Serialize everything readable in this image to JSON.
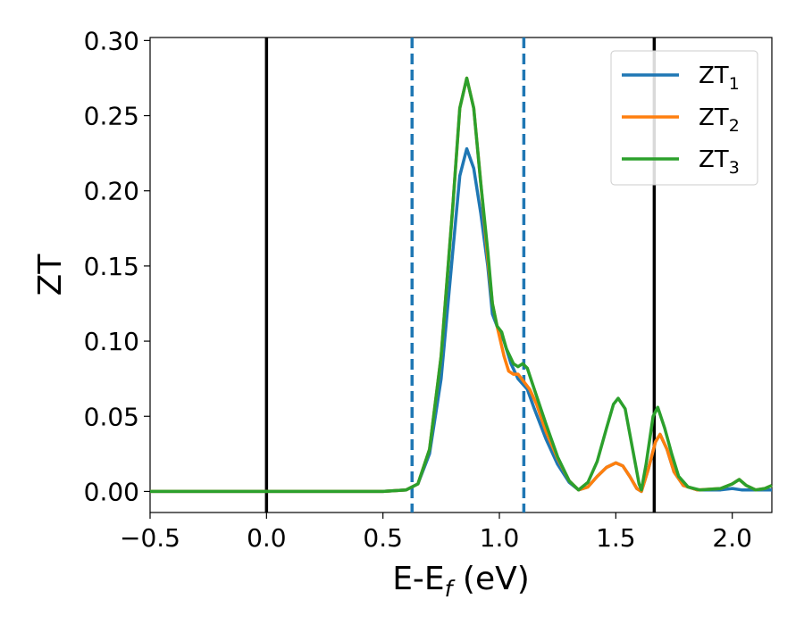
{
  "chart_data": {
    "type": "line",
    "title": "",
    "xlabel": "E-E",
    "xlabel_sub": "f",
    "xlabel_unit": " (eV)",
    "ylabel": "ZT",
    "xlim": [
      -0.5,
      2.17
    ],
    "ylim": [
      -0.014,
      0.302
    ],
    "xticks": [
      -0.5,
      0.0,
      0.5,
      1.0,
      1.5,
      2.0
    ],
    "xtick_labels": [
      "−0.5",
      "0.0",
      "0.5",
      "1.0",
      "1.5",
      "2.0"
    ],
    "yticks": [
      0.0,
      0.05,
      0.1,
      0.15,
      0.2,
      0.25,
      0.3
    ],
    "ytick_labels": [
      "0.00",
      "0.05",
      "0.10",
      "0.15",
      "0.20",
      "0.25",
      "0.30"
    ],
    "grid": false,
    "legend_position": "top-right",
    "vlines": [
      {
        "x": 0.0,
        "style": "solid",
        "color": "#000000"
      },
      {
        "x": 1.665,
        "style": "solid",
        "color": "#000000"
      },
      {
        "x": 0.625,
        "style": "dashed",
        "color": "#1f77b4"
      },
      {
        "x": 1.105,
        "style": "dashed",
        "color": "#1f77b4"
      }
    ],
    "series": [
      {
        "name": "ZT",
        "name_sub": "1",
        "color": "#1f77b4",
        "points": [
          [
            -0.5,
            0
          ],
          [
            0.5,
            0
          ],
          [
            0.6,
            0.001
          ],
          [
            0.65,
            0.005
          ],
          [
            0.7,
            0.025
          ],
          [
            0.75,
            0.075
          ],
          [
            0.8,
            0.16
          ],
          [
            0.83,
            0.21
          ],
          [
            0.86,
            0.228
          ],
          [
            0.89,
            0.215
          ],
          [
            0.92,
            0.185
          ],
          [
            0.95,
            0.15
          ],
          [
            0.97,
            0.118
          ],
          [
            0.99,
            0.11
          ],
          [
            1.02,
            0.1
          ],
          [
            1.05,
            0.085
          ],
          [
            1.08,
            0.075
          ],
          [
            1.12,
            0.068
          ],
          [
            1.15,
            0.055
          ],
          [
            1.2,
            0.035
          ],
          [
            1.25,
            0.018
          ],
          [
            1.3,
            0.006
          ],
          [
            1.34,
            0.001
          ],
          [
            1.38,
            0.003
          ],
          [
            1.42,
            0.01
          ],
          [
            1.46,
            0.016
          ],
          [
            1.5,
            0.019
          ],
          [
            1.53,
            0.017
          ],
          [
            1.56,
            0.01
          ],
          [
            1.59,
            0.002
          ],
          [
            1.61,
            0
          ],
          [
            1.64,
            0.015
          ],
          [
            1.67,
            0.033
          ],
          [
            1.69,
            0.038
          ],
          [
            1.72,
            0.028
          ],
          [
            1.75,
            0.013
          ],
          [
            1.79,
            0.004
          ],
          [
            1.85,
            0.001
          ],
          [
            1.95,
            0.001
          ],
          [
            2.0,
            0.002
          ],
          [
            2.04,
            0.001
          ],
          [
            2.1,
            0.001
          ],
          [
            2.17,
            0.001
          ]
        ]
      },
      {
        "name": "ZT",
        "name_sub": "2",
        "color": "#ff7f0e",
        "points": [
          [
            -0.5,
            0
          ],
          [
            0.5,
            0
          ],
          [
            0.6,
            0.001
          ],
          [
            0.65,
            0.005
          ],
          [
            0.7,
            0.028
          ],
          [
            0.75,
            0.09
          ],
          [
            0.8,
            0.19
          ],
          [
            0.83,
            0.255
          ],
          [
            0.86,
            0.275
          ],
          [
            0.89,
            0.255
          ],
          [
            0.92,
            0.205
          ],
          [
            0.95,
            0.155
          ],
          [
            0.97,
            0.125
          ],
          [
            0.99,
            0.11
          ],
          [
            1.02,
            0.09
          ],
          [
            1.04,
            0.08
          ],
          [
            1.06,
            0.078
          ],
          [
            1.08,
            0.078
          ],
          [
            1.1,
            0.074
          ],
          [
            1.13,
            0.068
          ],
          [
            1.16,
            0.058
          ],
          [
            1.2,
            0.04
          ],
          [
            1.25,
            0.022
          ],
          [
            1.3,
            0.007
          ],
          [
            1.34,
            0.001
          ],
          [
            1.38,
            0.003
          ],
          [
            1.42,
            0.01
          ],
          [
            1.46,
            0.016
          ],
          [
            1.5,
            0.019
          ],
          [
            1.53,
            0.017
          ],
          [
            1.56,
            0.01
          ],
          [
            1.59,
            0.002
          ],
          [
            1.61,
            0
          ],
          [
            1.64,
            0.015
          ],
          [
            1.67,
            0.033
          ],
          [
            1.69,
            0.038
          ],
          [
            1.72,
            0.028
          ],
          [
            1.75,
            0.013
          ],
          [
            1.79,
            0.004
          ],
          [
            1.85,
            0.001
          ],
          [
            1.95,
            0.002
          ],
          [
            2.0,
            0.005
          ],
          [
            2.03,
            0.008
          ],
          [
            2.06,
            0.004
          ],
          [
            2.1,
            0.001
          ],
          [
            2.14,
            0.002
          ],
          [
            2.17,
            0.004
          ]
        ]
      },
      {
        "name": "ZT",
        "name_sub": "3",
        "color": "#2ca02c",
        "points": [
          [
            -0.5,
            0
          ],
          [
            0.5,
            0
          ],
          [
            0.6,
            0.001
          ],
          [
            0.65,
            0.005
          ],
          [
            0.7,
            0.028
          ],
          [
            0.75,
            0.09
          ],
          [
            0.8,
            0.19
          ],
          [
            0.83,
            0.255
          ],
          [
            0.86,
            0.275
          ],
          [
            0.89,
            0.255
          ],
          [
            0.92,
            0.205
          ],
          [
            0.95,
            0.16
          ],
          [
            0.97,
            0.125
          ],
          [
            0.99,
            0.11
          ],
          [
            1.01,
            0.106
          ],
          [
            1.03,
            0.095
          ],
          [
            1.06,
            0.085
          ],
          [
            1.08,
            0.083
          ],
          [
            1.1,
            0.085
          ],
          [
            1.12,
            0.082
          ],
          [
            1.15,
            0.068
          ],
          [
            1.2,
            0.045
          ],
          [
            1.25,
            0.023
          ],
          [
            1.3,
            0.007
          ],
          [
            1.34,
            0.001
          ],
          [
            1.38,
            0.006
          ],
          [
            1.42,
            0.02
          ],
          [
            1.46,
            0.042
          ],
          [
            1.49,
            0.058
          ],
          [
            1.51,
            0.062
          ],
          [
            1.54,
            0.055
          ],
          [
            1.57,
            0.03
          ],
          [
            1.6,
            0.005
          ],
          [
            1.61,
            0.001
          ],
          [
            1.63,
            0.018
          ],
          [
            1.66,
            0.05
          ],
          [
            1.68,
            0.056
          ],
          [
            1.71,
            0.042
          ],
          [
            1.74,
            0.025
          ],
          [
            1.77,
            0.01
          ],
          [
            1.81,
            0.003
          ],
          [
            1.86,
            0.001
          ],
          [
            1.95,
            0.002
          ],
          [
            2.0,
            0.005
          ],
          [
            2.03,
            0.008
          ],
          [
            2.06,
            0.004
          ],
          [
            2.1,
            0.001
          ],
          [
            2.14,
            0.002
          ],
          [
            2.17,
            0.004
          ]
        ]
      }
    ]
  }
}
